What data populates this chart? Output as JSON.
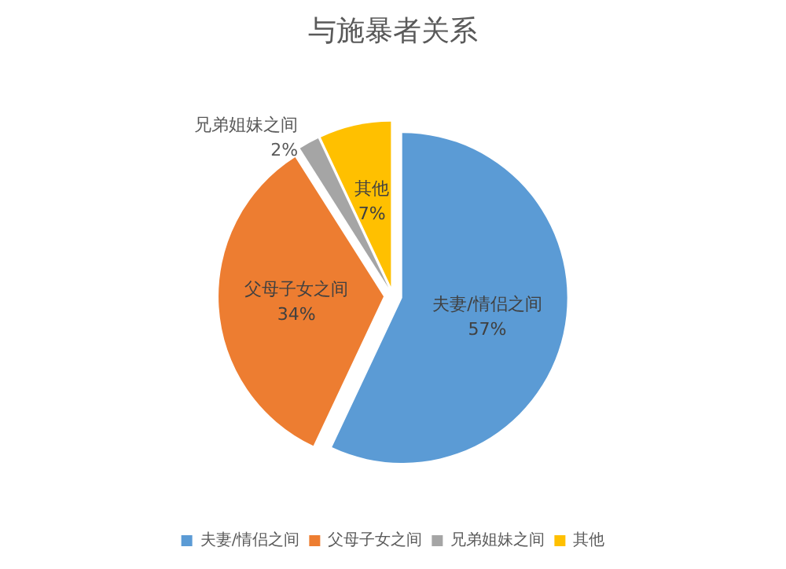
{
  "chart_data": {
    "type": "pie",
    "title": "与施暴者关系",
    "categories": [
      "夫妻/情侣之间",
      "父母子女之间",
      "兄弟姐妹之间",
      "其他"
    ],
    "values": [
      57,
      34,
      2,
      7
    ],
    "colors": [
      "#5b9bd5",
      "#ed7d31",
      "#a5a5a5",
      "#ffc000"
    ],
    "value_labels": [
      "57%",
      "34%",
      "2%",
      "7%"
    ],
    "legend": "bottom"
  }
}
